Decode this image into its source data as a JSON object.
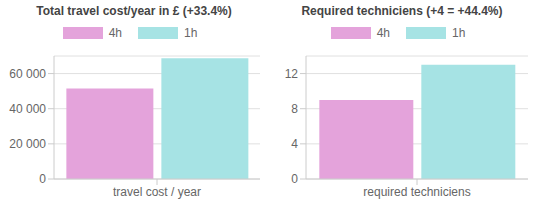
{
  "chart_data": [
    {
      "type": "bar",
      "title": "Total travel cost/year in £ (+33.4%)",
      "categories": [
        "travel cost / year"
      ],
      "series": [
        {
          "name": "4h",
          "color": "#e4a3db",
          "values": [
            51500
          ]
        },
        {
          "name": "1h",
          "color": "#a6e3e4",
          "values": [
            68700
          ]
        }
      ],
      "ylim": [
        0,
        70000
      ],
      "yticks": [
        0,
        {
          "value": 20000,
          "label": "20 000"
        },
        {
          "value": 40000,
          "label": "40 000"
        },
        {
          "value": 60000,
          "label": "60 000"
        }
      ],
      "grid": true,
      "legend": "top"
    },
    {
      "type": "bar",
      "title": "Required techniciens  (+4 = +44.4%)",
      "categories": [
        "required techniciens"
      ],
      "series": [
        {
          "name": "4h",
          "color": "#e4a3db",
          "values": [
            9
          ]
        },
        {
          "name": "1h",
          "color": "#a6e3e4",
          "values": [
            13
          ]
        }
      ],
      "ylim": [
        0,
        14
      ],
      "yticks": [
        0,
        4,
        8,
        12
      ],
      "grid": true,
      "legend": "top"
    }
  ]
}
